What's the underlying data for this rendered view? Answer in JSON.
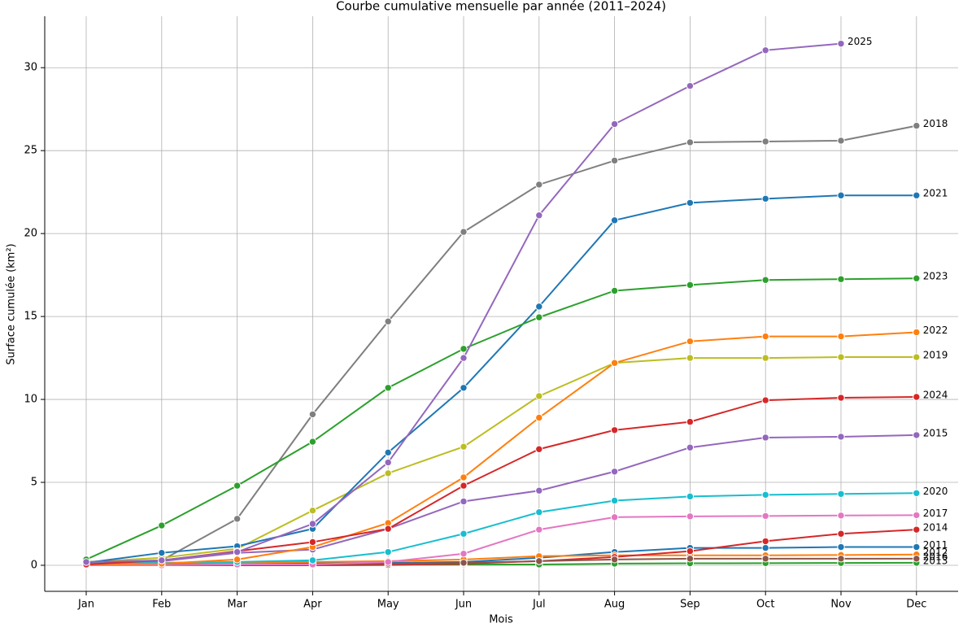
{
  "chart_data": {
    "type": "line",
    "title": "Courbe cumulative mensuelle par année (2011–2024)",
    "x_label": "Mois",
    "y_label": "Surface cumulée (km²)",
    "categories": [
      "Jan",
      "Feb",
      "Mar",
      "Apr",
      "May",
      "Jun",
      "Jul",
      "Aug",
      "Sep",
      "Oct",
      "Nov",
      "Dec"
    ],
    "ylim": [
      -1.57,
      33.1
    ],
    "yticks": [
      0,
      5,
      10,
      15,
      20,
      25,
      30
    ],
    "grid": true,
    "series": [
      {
        "name": "2011",
        "color": "#1f77b4",
        "values": [
          0.1,
          0.1,
          0.15,
          0.15,
          0.15,
          0.2,
          0.45,
          0.8,
          1.05,
          1.05,
          1.1,
          1.1
        ]
      },
      {
        "name": "2012",
        "color": "#ff7f0e",
        "values": [
          0.05,
          0.1,
          0.15,
          0.2,
          0.25,
          0.35,
          0.55,
          0.6,
          0.6,
          0.6,
          0.62,
          0.65
        ]
      },
      {
        "name": "2013",
        "color": "#2ca02c",
        "values": [
          0.02,
          0.02,
          0.03,
          0.03,
          0.03,
          0.04,
          0.05,
          0.1,
          0.12,
          0.13,
          0.14,
          0.15
        ]
      },
      {
        "name": "2014",
        "color": "#d62728",
        "values": [
          0,
          0,
          0,
          0,
          0.02,
          0.1,
          0.25,
          0.5,
          0.85,
          1.45,
          1.9,
          2.15
        ]
      },
      {
        "name": "2015",
        "color": "#9467bd",
        "values": [
          0.05,
          0.25,
          0.75,
          0.95,
          2.2,
          3.85,
          4.5,
          5.65,
          7.1,
          7.7,
          7.75,
          7.85
        ]
      },
      {
        "name": "2016",
        "color": "#8c564b",
        "values": [
          0.02,
          0.03,
          0.05,
          0.07,
          0.1,
          0.15,
          0.25,
          0.35,
          0.4,
          0.4,
          0.4,
          0.4
        ]
      },
      {
        "name": "2017",
        "color": "#e377c2",
        "values": [
          0,
          0,
          0.05,
          0.05,
          0.2,
          0.7,
          2.15,
          2.9,
          2.95,
          2.97,
          3.0,
          3.02
        ]
      },
      {
        "name": "2018",
        "color": "#7f7f7f",
        "values": [
          0.1,
          0.3,
          2.8,
          9.1,
          14.7,
          20.1,
          22.95,
          24.4,
          25.5,
          25.55,
          25.6,
          26.5
        ]
      },
      {
        "name": "2019",
        "color": "#bcbd22",
        "values": [
          0.2,
          0.45,
          1.0,
          3.3,
          5.55,
          7.15,
          10.2,
          12.2,
          12.5,
          12.5,
          12.55,
          12.55
        ]
      },
      {
        "name": "2020",
        "color": "#17becf",
        "values": [
          0.1,
          0.15,
          0.2,
          0.3,
          0.8,
          1.9,
          3.2,
          3.9,
          4.15,
          4.25,
          4.3,
          4.35
        ]
      },
      {
        "name": "2021",
        "color": "#1f77b4",
        "values": [
          0.15,
          0.75,
          1.15,
          2.2,
          6.8,
          10.7,
          15.6,
          20.8,
          21.85,
          22.1,
          22.3,
          22.3
        ]
      },
      {
        "name": "2022",
        "color": "#ff7f0e",
        "values": [
          0.05,
          0.1,
          0.35,
          1.1,
          2.55,
          5.3,
          8.9,
          12.2,
          13.5,
          13.8,
          13.8,
          14.05
        ]
      },
      {
        "name": "2023",
        "color": "#2ca02c",
        "values": [
          0.35,
          2.4,
          4.8,
          7.45,
          10.7,
          13.05,
          14.95,
          16.55,
          16.9,
          17.2,
          17.25,
          17.3
        ]
      },
      {
        "name": "2024",
        "color": "#d62728",
        "values": [
          0.05,
          0.3,
          0.85,
          1.4,
          2.2,
          4.8,
          7.0,
          8.15,
          8.65,
          9.95,
          10.1,
          10.15
        ]
      },
      {
        "name": "2025",
        "color": "#9467bd",
        "values": [
          0.2,
          0.3,
          0.8,
          2.5,
          6.2,
          12.5,
          21.1,
          26.6,
          28.9,
          31.05,
          31.45,
          null
        ]
      }
    ]
  }
}
